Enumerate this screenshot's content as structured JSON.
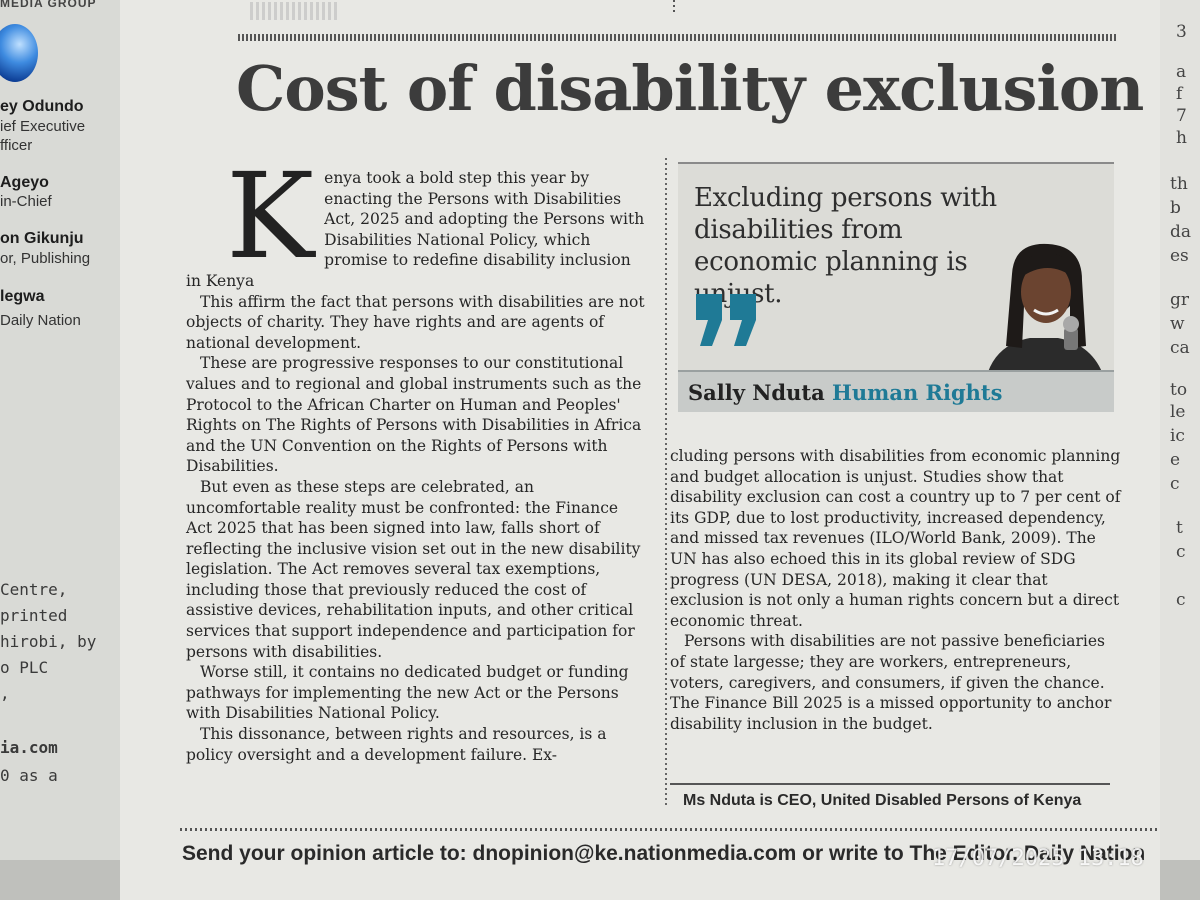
{
  "left_masthead": {
    "group_label": "MEDIA GROUP",
    "people": [
      {
        "name": "ey Odundo",
        "role_lines": [
          "ief Executive",
          "fficer"
        ]
      },
      {
        "name": "Ageyo",
        "role_lines": [
          "in-Chief"
        ]
      },
      {
        "name": "on Gikunju",
        "role_lines": [
          "or, Publishing"
        ]
      },
      {
        "name": "legwa",
        "role_lines": [
          "Daily Nation"
        ]
      }
    ],
    "imprint_lines": [
      " Centre,",
      " printed",
      "hirobi, by",
      "o PLC",
      ","
    ],
    "web": "ia.com",
    "web_note": "0 as a"
  },
  "right_strip_letters": [
    "3",
    "a",
    "f",
    "7",
    "h",
    "th",
    "b",
    "da",
    "es",
    "gr",
    "w",
    "ca",
    "to",
    "le",
    "ic",
    "e",
    "c",
    "t",
    "c",
    "c"
  ],
  "article": {
    "headline": "Cost of disability exclusion",
    "dropcap": "K",
    "col1_paragraphs": [
      "enya took a bold step this year by enacting the Persons with Disabilities Act, 2025 and adopting the Persons with Disabilities National Policy, which promise to redefine disability inclusion in Kenya",
      "This affirm the fact that persons with disabilities are not objects of charity. They have rights and are agents of national development.",
      "These are progressive responses to our constitutional values and to regional and global instruments such as the Protocol to the African Charter on Human and Peoples' Rights on The Rights of Persons with Disabilities in Africa and the UN Convention on the Rights of Persons with Disabilities.",
      "But even as these steps are celebrated, an uncomfortable reality must be confronted: the Finance Act 2025 that has been signed into law, falls short of reflecting the inclusive vision set out in the new disability legislation. The Act removes several tax exemptions, including those that previously reduced the cost of assistive devices, rehabilitation inputs, and other critical services that support independence and participation for persons with disabilities.",
      "Worse still, it contains no dedicated budget or funding pathways for implementing the new Act or the Persons with Disabilities National Policy.",
      "This dissonance, between rights and resources, is a policy oversight and a development failure. Ex-"
    ],
    "col2_paragraphs": [
      "cluding persons with disabilities from economic planning and budget allocation is unjust. Studies show that disability exclusion can cost a country up to 7 per cent of its GDP, due to lost productivity, increased dependency, and missed tax revenues (ILO/World Bank, 2009). The UN has also echoed this in its global review of SDG progress (UN DESA, 2018), making it clear that exclusion is not only a human rights concern but a direct economic threat.",
      "Persons with disabilities are not passive beneficiaries of state largesse; they are workers, entrepreneurs, voters, caregivers, and consumers, if given the chance. The Finance Bill 2025 is a missed opportunity to anchor disability inclusion in the budget."
    ],
    "pull_quote": "Excluding persons with disabilities from economic planning is unjust.",
    "author_name": "Sally Nduta",
    "author_topic": "Human Rights",
    "author_note": "Ms Nduta is CEO, United Disabled Persons of Kenya",
    "accent_color": "#1f7a96"
  },
  "footer": {
    "text": "Send your opinion article to: dnopinion@ke.nationmedia.com or write to The Editor, Daily Nation"
  },
  "timestamp": "17/07/2025  13:18"
}
